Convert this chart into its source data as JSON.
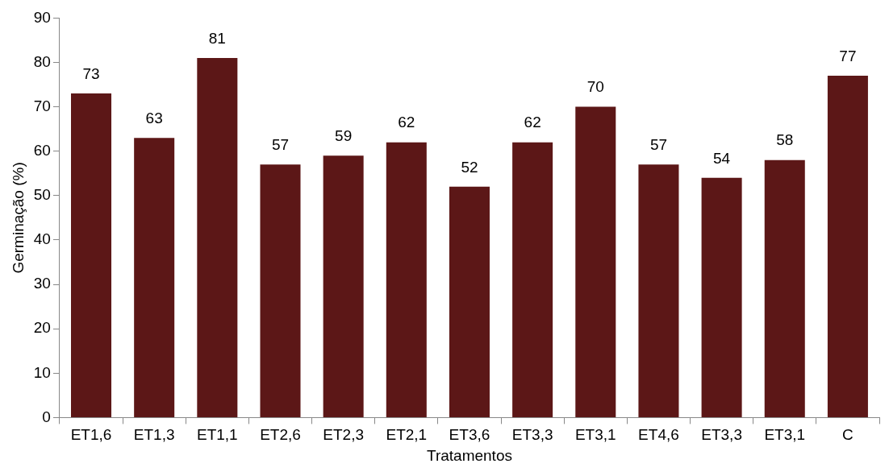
{
  "chart_data": {
    "type": "bar",
    "xlabel": "Tratamentos",
    "ylabel": "Germinação (%)",
    "categories": [
      "ET1,6",
      "ET1,3",
      "ET1,1",
      "ET2,6",
      "ET2,3",
      "ET2,1",
      "ET3,6",
      "ET3,3",
      "ET3,1",
      "ET4,6",
      "ET3,3",
      "ET3,1",
      "C"
    ],
    "values": [
      73,
      63,
      81,
      57,
      59,
      62,
      52,
      62,
      70,
      57,
      54,
      58,
      77
    ],
    "color": "#5c1717",
    "ylim": [
      0,
      90
    ],
    "yticks": [
      0,
      10,
      20,
      30,
      40,
      50,
      60,
      70,
      80,
      90
    ],
    "data_labels": true,
    "grid": false,
    "legend": false
  }
}
